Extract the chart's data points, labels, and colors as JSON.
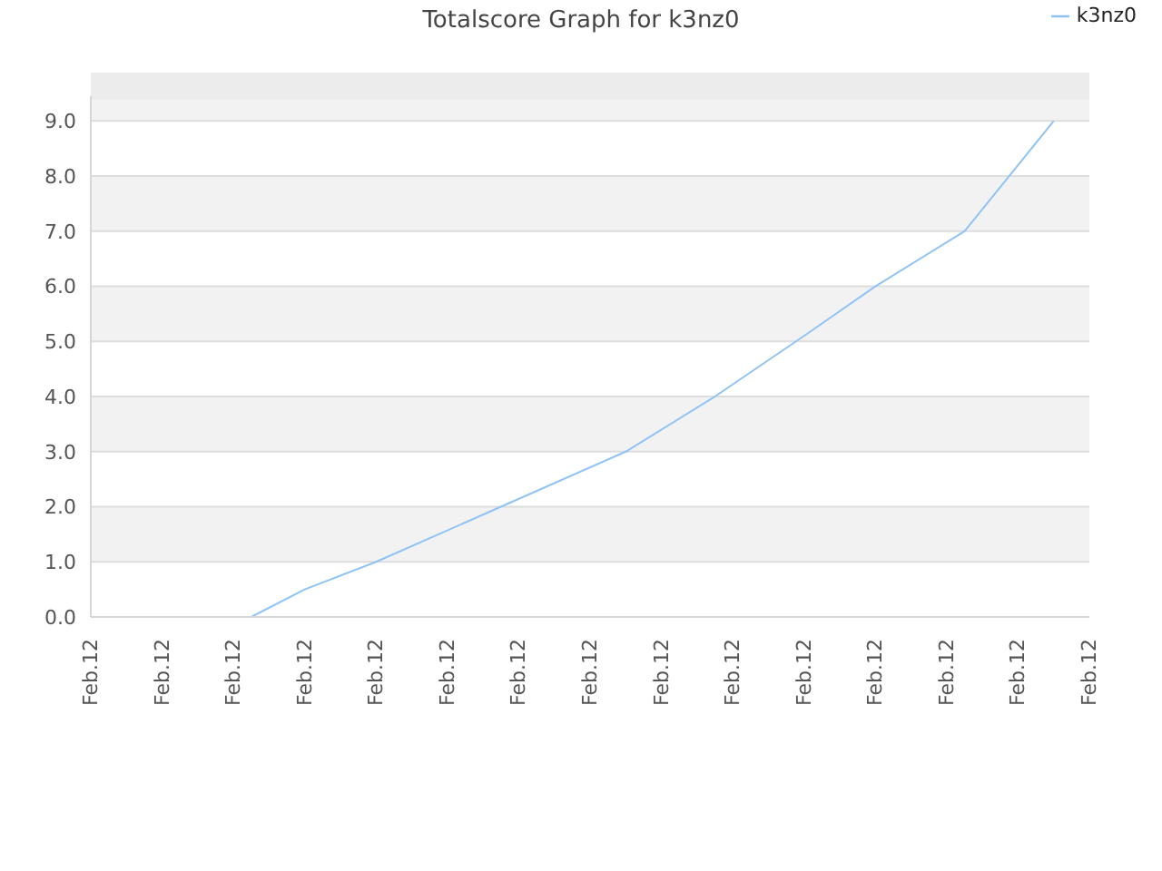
{
  "chart_data": {
    "type": "line",
    "title": "Totalscore Graph for k3nz0",
    "categories": [
      "Feb.12",
      null,
      null,
      null,
      "Feb.12",
      null,
      null,
      null,
      "Feb.12",
      null,
      null,
      null,
      "Feb.12",
      null,
      null,
      null,
      "Feb.12",
      null,
      null,
      null,
      "Feb.12",
      null,
      null,
      null,
      "Feb.12",
      null,
      null,
      null,
      "Feb.12",
      null,
      null,
      null,
      "Feb.12",
      null,
      null,
      null,
      "Feb.12",
      null,
      null,
      null,
      "Feb.12",
      null,
      null,
      null,
      "Feb.12",
      null,
      null,
      null,
      "Feb.12",
      null,
      null,
      null,
      "Feb.12",
      null,
      null,
      null,
      "Feb.12"
    ],
    "series": [
      {
        "name": "k3nz0",
        "color": "#90c3f5",
        "values": [
          null,
          null,
          null,
          0,
          null,
          null,
          null,
          null,
          null,
          0,
          null,
          null,
          0.5,
          null,
          null,
          null,
          1.0,
          null,
          null,
          null,
          null,
          null,
          null,
          2.0,
          null,
          null,
          null,
          null,
          null,
          null,
          3.0,
          null,
          null,
          null,
          null,
          4.0,
          null,
          null,
          null,
          null,
          5.1,
          null,
          null,
          null,
          6.0,
          null,
          null,
          null,
          null,
          7.0,
          null,
          null,
          null,
          null,
          9.0,
          null,
          null
        ]
      }
    ],
    "ylim": [
      0,
      9.45
    ],
    "yticks": [
      {
        "value": 0,
        "label": "0.0"
      },
      {
        "value": 1,
        "label": "1.0"
      },
      {
        "value": 2,
        "label": "2.0"
      },
      {
        "value": 3,
        "label": "3.0"
      },
      {
        "value": 4,
        "label": "4.0"
      },
      {
        "value": 5,
        "label": "5.0"
      },
      {
        "value": 6,
        "label": "6.0"
      },
      {
        "value": 7,
        "label": "7.0"
      },
      {
        "value": 8,
        "label": "8.0"
      },
      {
        "value": 9,
        "label": "9.0"
      }
    ],
    "grid": "y",
    "legend": "top right",
    "marker": "none",
    "line_style": "solid"
  }
}
